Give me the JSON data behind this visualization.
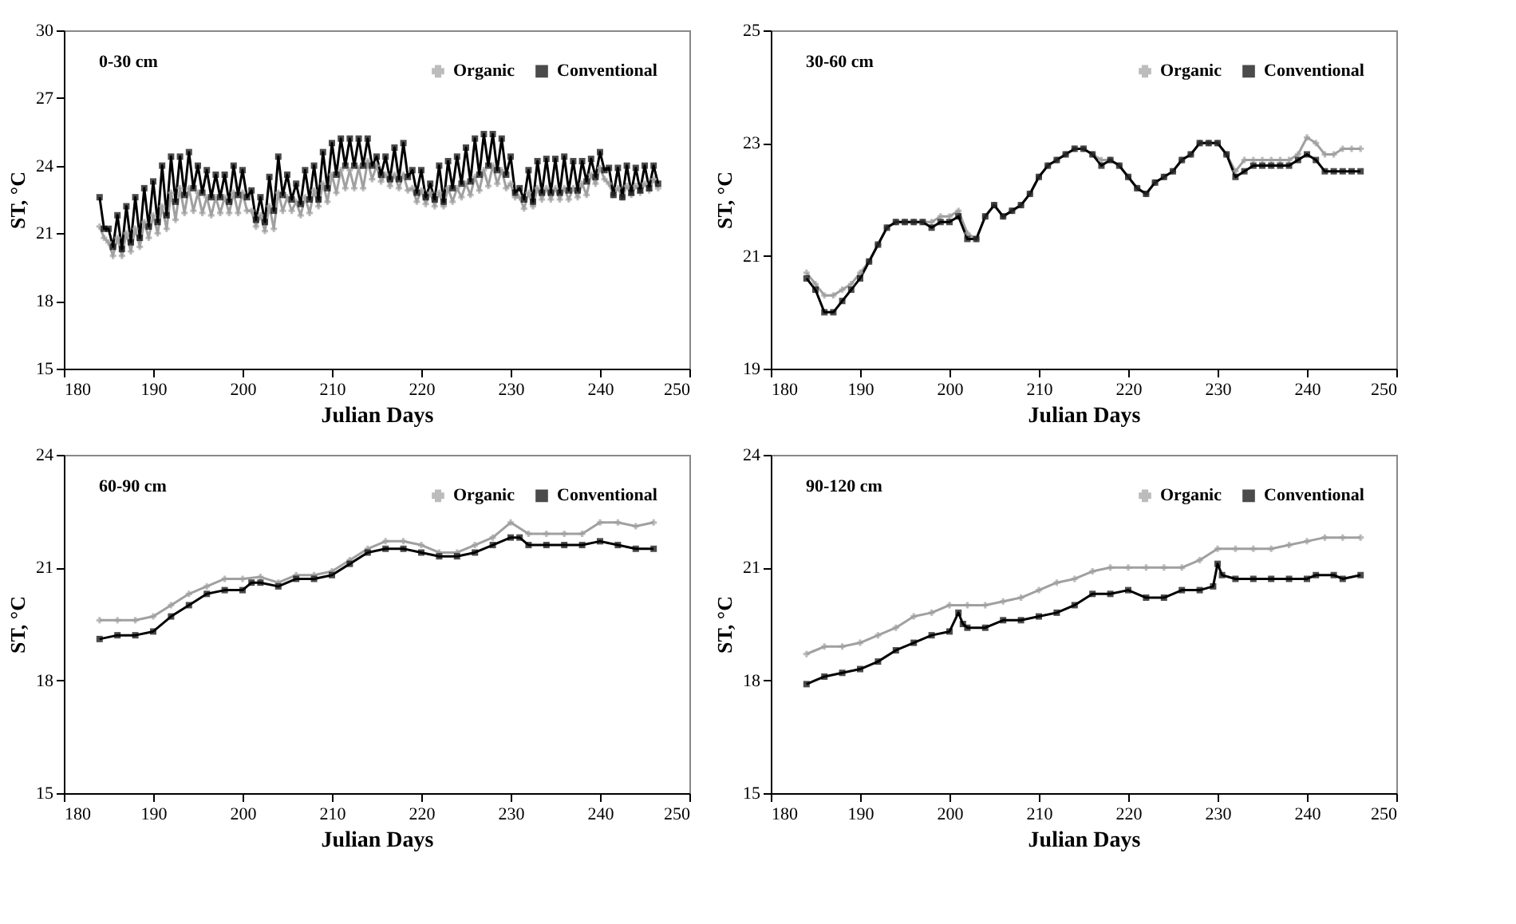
{
  "chart_data": [
    {
      "type": "line",
      "xlabel": "Julian Days",
      "ylabel": "ST, °C",
      "annotations": [
        "0-30 cm"
      ],
      "xlim": [
        180,
        250
      ],
      "xticks": [
        180,
        190,
        200,
        210,
        220,
        230,
        240,
        250
      ],
      "ylim": [
        15,
        30
      ],
      "yticks": [
        15,
        18,
        21,
        24,
        27,
        30
      ],
      "grid": false,
      "legend": "top right",
      "line_style": "solid",
      "x": [
        184,
        184.5,
        185,
        185.5,
        186,
        186.5,
        187,
        187.5,
        188,
        188.5,
        189,
        189.5,
        190,
        190.5,
        191,
        191.5,
        192,
        192.5,
        193,
        193.5,
        194,
        194.5,
        195,
        195.5,
        196,
        196.5,
        197,
        197.5,
        198,
        198.5,
        199,
        199.5,
        200,
        200.5,
        201,
        201.5,
        202,
        202.5,
        203,
        203.5,
        204,
        204.5,
        205,
        205.5,
        206,
        206.5,
        207,
        207.5,
        208,
        208.5,
        209,
        209.5,
        210,
        210.5,
        211,
        211.5,
        212,
        212.5,
        213,
        213.5,
        214,
        214.5,
        215,
        215.5,
        216,
        216.5,
        217,
        217.5,
        218,
        218.5,
        219,
        219.5,
        220,
        220.5,
        221,
        221.5,
        222,
        222.5,
        223,
        223.5,
        224,
        224.5,
        225,
        225.5,
        226,
        226.5,
        227,
        227.5,
        228,
        228.5,
        229,
        229.5,
        230,
        230.5,
        231,
        231.5,
        232,
        232.5,
        233,
        233.5,
        234,
        234.5,
        235,
        235.5,
        236,
        236.5,
        237,
        237.5,
        238,
        238.5,
        239,
        239.5,
        240,
        240.5,
        241,
        241.5,
        242,
        242.5,
        243,
        243.5,
        244,
        244.5,
        245,
        245.5,
        246,
        246.5
      ],
      "series": [
        {
          "name": "Organic",
          "color": "#a0a0a0",
          "marker": "cross",
          "values": [
            21.3,
            20.8,
            20.6,
            20.0,
            20.8,
            20.0,
            21.0,
            20.2,
            21.2,
            20.4,
            21.5,
            20.8,
            21.8,
            21.0,
            22.2,
            21.2,
            22.8,
            21.6,
            23.0,
            21.9,
            23.0,
            22.0,
            22.8,
            21.9,
            22.6,
            21.8,
            22.6,
            21.9,
            22.6,
            21.9,
            22.8,
            21.9,
            22.8,
            22.0,
            22.0,
            21.3,
            21.8,
            21.1,
            22.2,
            21.2,
            22.8,
            22.0,
            22.6,
            22.0,
            22.4,
            21.8,
            22.6,
            21.9,
            22.9,
            22.2,
            23.2,
            22.4,
            23.6,
            22.8,
            23.8,
            23.0,
            23.8,
            23.0,
            23.9,
            23.0,
            24.2,
            23.4,
            24.0,
            23.3,
            23.6,
            23.1,
            23.6,
            23.0,
            23.6,
            22.9,
            23.0,
            22.4,
            22.9,
            22.3,
            22.8,
            22.2,
            22.8,
            22.2,
            23.0,
            22.4,
            23.0,
            22.6,
            23.2,
            22.7,
            23.5,
            22.9,
            23.8,
            23.1,
            24.0,
            23.2,
            23.8,
            23.0,
            23.2,
            22.6,
            22.6,
            22.1,
            22.8,
            22.2,
            23.0,
            22.5,
            23.0,
            22.5,
            23.0,
            22.5,
            23.0,
            22.5,
            23.0,
            22.6,
            23.2,
            22.7,
            23.6,
            23.2,
            23.9,
            23.4,
            23.2,
            22.7,
            23.0,
            22.6,
            23.1,
            22.7,
            23.1,
            22.8,
            23.2,
            22.9,
            23.4,
            23.0
          ]
        },
        {
          "name": "Conventional",
          "color": "#000000",
          "marker": "square",
          "values": [
            22.6,
            21.2,
            21.2,
            20.4,
            21.8,
            20.3,
            22.2,
            20.6,
            22.6,
            20.8,
            23.0,
            21.3,
            23.3,
            21.5,
            24.0,
            21.8,
            24.4,
            22.4,
            24.4,
            22.7,
            24.6,
            23.0,
            24.0,
            22.8,
            23.8,
            22.6,
            23.6,
            22.6,
            23.6,
            22.4,
            24.0,
            22.7,
            23.8,
            22.6,
            22.9,
            21.6,
            22.6,
            21.5,
            23.5,
            22.0,
            24.4,
            22.7,
            23.6,
            22.5,
            23.2,
            22.3,
            23.8,
            22.5,
            24.0,
            22.5,
            24.6,
            23.0,
            25.0,
            23.6,
            25.2,
            24.0,
            25.2,
            24.0,
            25.2,
            24.0,
            25.2,
            24.0,
            24.4,
            23.6,
            24.4,
            23.4,
            24.8,
            23.4,
            25.0,
            23.5,
            23.8,
            22.8,
            23.8,
            22.6,
            23.2,
            22.5,
            24.0,
            22.4,
            24.2,
            23.0,
            24.4,
            23.2,
            24.8,
            23.3,
            25.2,
            23.6,
            25.4,
            24.0,
            25.4,
            23.8,
            25.2,
            23.6,
            24.4,
            22.8,
            23.0,
            22.5,
            23.8,
            22.4,
            24.2,
            22.8,
            24.3,
            22.8,
            24.3,
            22.8,
            24.4,
            22.9,
            24.2,
            22.9,
            24.2,
            23.3,
            24.3,
            23.5,
            24.6,
            23.8,
            23.9,
            22.7,
            23.9,
            22.6,
            24.0,
            22.8,
            23.9,
            22.9,
            24.0,
            23.0,
            24.0,
            23.2
          ]
        }
      ]
    },
    {
      "type": "line",
      "xlabel": "Julian Days",
      "ylabel": "ST, °C",
      "annotations": [
        "30-60 cm"
      ],
      "xlim": [
        180,
        250
      ],
      "xticks": [
        180,
        190,
        200,
        210,
        220,
        230,
        240,
        250
      ],
      "ylim": [
        19,
        25
      ],
      "yticks": [
        19,
        21,
        23,
        25
      ],
      "grid": false,
      "legend": "top right",
      "line_style": "solid",
      "x": [
        184,
        185,
        186,
        187,
        188,
        189,
        190,
        191,
        192,
        193,
        194,
        195,
        196,
        197,
        198,
        199,
        200,
        201,
        202,
        203,
        204,
        205,
        206,
        207,
        208,
        209,
        210,
        211,
        212,
        213,
        214,
        215,
        216,
        217,
        218,
        219,
        220,
        221,
        222,
        223,
        224,
        225,
        226,
        227,
        228,
        229,
        230,
        231,
        232,
        233,
        234,
        235,
        236,
        237,
        238,
        239,
        240,
        241,
        242,
        243,
        244,
        245,
        246
      ],
      "series": [
        {
          "name": "Organic",
          "color": "#a0a0a0",
          "marker": "cross",
          "values": [
            20.7,
            20.5,
            20.3,
            20.3,
            20.4,
            20.5,
            20.7,
            20.9,
            21.2,
            21.5,
            21.6,
            21.6,
            21.6,
            21.6,
            21.6,
            21.7,
            21.7,
            21.8,
            21.4,
            21.3,
            21.7,
            21.9,
            21.7,
            21.8,
            21.9,
            22.1,
            22.4,
            22.6,
            22.7,
            22.8,
            22.9,
            22.9,
            22.8,
            22.7,
            22.7,
            22.6,
            22.4,
            22.2,
            22.1,
            22.3,
            22.4,
            22.5,
            22.7,
            22.8,
            23.0,
            23.0,
            23.0,
            22.8,
            22.5,
            22.7,
            22.7,
            22.7,
            22.7,
            22.7,
            22.7,
            22.8,
            23.1,
            23.0,
            22.8,
            22.8,
            22.9,
            22.9,
            22.9
          ]
        },
        {
          "name": "Conventional",
          "color": "#000000",
          "marker": "square",
          "values": [
            20.6,
            20.4,
            20.0,
            20.0,
            20.2,
            20.4,
            20.6,
            20.9,
            21.2,
            21.5,
            21.6,
            21.6,
            21.6,
            21.6,
            21.5,
            21.6,
            21.6,
            21.7,
            21.3,
            21.3,
            21.7,
            21.9,
            21.7,
            21.8,
            21.9,
            22.1,
            22.4,
            22.6,
            22.7,
            22.8,
            22.9,
            22.9,
            22.8,
            22.6,
            22.7,
            22.6,
            22.4,
            22.2,
            22.1,
            22.3,
            22.4,
            22.5,
            22.7,
            22.8,
            23.0,
            23.0,
            23.0,
            22.8,
            22.4,
            22.5,
            22.6,
            22.6,
            22.6,
            22.6,
            22.6,
            22.7,
            22.8,
            22.7,
            22.5,
            22.5,
            22.5,
            22.5,
            22.5
          ]
        }
      ]
    },
    {
      "type": "line",
      "xlabel": "Julian Days",
      "ylabel": "ST, °C",
      "annotations": [
        "60-90 cm"
      ],
      "xlim": [
        180,
        250
      ],
      "xticks": [
        180,
        190,
        200,
        210,
        220,
        230,
        240,
        250
      ],
      "ylim": [
        15,
        24
      ],
      "yticks": [
        15,
        18,
        21,
        24
      ],
      "grid": false,
      "legend": "top right",
      "line_style": "solid",
      "series": [
        {
          "name": "Organic",
          "color": "#a0a0a0",
          "marker": "cross",
          "x": [
            184,
            186,
            188,
            190,
            192,
            194,
            196,
            198,
            200,
            202,
            204,
            206,
            208,
            210,
            212,
            214,
            216,
            218,
            220,
            222,
            224,
            226,
            228,
            230,
            232,
            234,
            236,
            238,
            240,
            242,
            244,
            246
          ],
          "values": [
            19.6,
            19.6,
            19.6,
            19.7,
            20.0,
            20.3,
            20.5,
            20.7,
            20.7,
            20.75,
            20.6,
            20.8,
            20.8,
            20.9,
            21.2,
            21.5,
            21.7,
            21.7,
            21.6,
            21.4,
            21.4,
            21.6,
            21.8,
            22.2,
            21.9,
            21.9,
            21.9,
            21.9,
            22.2,
            22.2,
            22.1,
            22.2
          ]
        },
        {
          "name": "Conventional",
          "color": "#000000",
          "marker": "square",
          "x": [
            184,
            186,
            188,
            190,
            192,
            194,
            196,
            198,
            200,
            201,
            202,
            204,
            206,
            208,
            210,
            212,
            214,
            216,
            218,
            220,
            222,
            224,
            226,
            228,
            230,
            231,
            232,
            234,
            236,
            238,
            240,
            242,
            244,
            246
          ],
          "values": [
            19.1,
            19.2,
            19.2,
            19.3,
            19.7,
            20.0,
            20.3,
            20.4,
            20.4,
            20.6,
            20.6,
            20.5,
            20.7,
            20.7,
            20.8,
            21.1,
            21.4,
            21.5,
            21.5,
            21.4,
            21.3,
            21.3,
            21.4,
            21.6,
            21.8,
            21.8,
            21.6,
            21.6,
            21.6,
            21.6,
            21.7,
            21.6,
            21.5,
            21.5
          ]
        }
      ]
    },
    {
      "type": "line",
      "xlabel": "Julian Days",
      "ylabel": "ST, °C",
      "annotations": [
        "90-120 cm"
      ],
      "xlim": [
        180,
        250
      ],
      "xticks": [
        180,
        190,
        200,
        210,
        220,
        230,
        240,
        250
      ],
      "ylim": [
        15,
        24
      ],
      "yticks": [
        15,
        18,
        21,
        24
      ],
      "grid": false,
      "legend": "top right",
      "line_style": "solid",
      "series": [
        {
          "name": "Organic",
          "color": "#a0a0a0",
          "marker": "cross",
          "x": [
            184,
            186,
            188,
            190,
            192,
            194,
            196,
            198,
            200,
            202,
            204,
            206,
            208,
            210,
            212,
            214,
            216,
            218,
            220,
            222,
            224,
            226,
            228,
            230,
            232,
            234,
            236,
            238,
            240,
            242,
            244,
            246
          ],
          "values": [
            18.7,
            18.9,
            18.9,
            19.0,
            19.2,
            19.4,
            19.7,
            19.8,
            20.0,
            20.0,
            20.0,
            20.1,
            20.2,
            20.4,
            20.6,
            20.7,
            20.9,
            21.0,
            21.0,
            21.0,
            21.0,
            21.0,
            21.2,
            21.5,
            21.5,
            21.5,
            21.5,
            21.6,
            21.7,
            21.8,
            21.8,
            21.8
          ]
        },
        {
          "name": "Conventional",
          "color": "#000000",
          "marker": "square",
          "x": [
            184,
            186,
            188,
            190,
            192,
            194,
            196,
            198,
            200,
            201,
            201.5,
            202,
            204,
            206,
            208,
            210,
            212,
            214,
            216,
            218,
            220,
            222,
            224,
            226,
            228,
            229.5,
            230,
            230.5,
            232,
            234,
            236,
            238,
            240,
            241,
            243,
            244,
            246
          ],
          "values": [
            17.9,
            18.1,
            18.2,
            18.3,
            18.5,
            18.8,
            19.0,
            19.2,
            19.3,
            19.8,
            19.5,
            19.4,
            19.4,
            19.6,
            19.6,
            19.7,
            19.8,
            20.0,
            20.3,
            20.3,
            20.4,
            20.2,
            20.2,
            20.4,
            20.4,
            20.5,
            21.1,
            20.8,
            20.7,
            20.7,
            20.7,
            20.7,
            20.7,
            20.8,
            20.8,
            20.7,
            20.8
          ]
        }
      ]
    }
  ]
}
